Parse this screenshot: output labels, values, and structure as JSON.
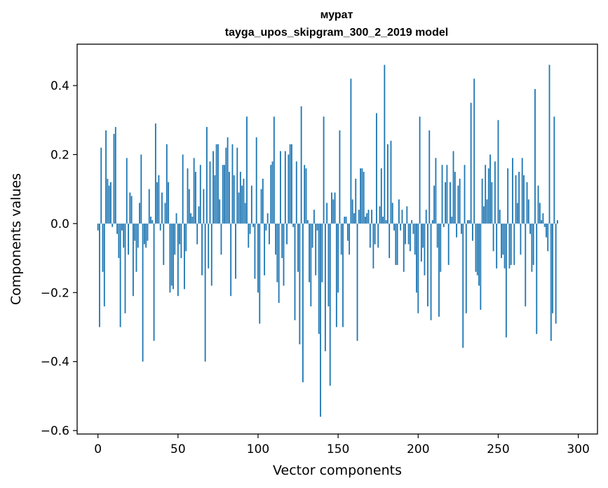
{
  "chart_data": {
    "type": "bar",
    "title": "мурат",
    "subtitle": "tayga_upos_skipgram_300_2_2019 model",
    "xlabel": "Vector components",
    "ylabel": "Components values",
    "xlim": [
      -13,
      312
    ],
    "ylim": [
      -0.61,
      0.52
    ],
    "xticks": [
      0,
      50,
      100,
      150,
      200,
      250,
      300
    ],
    "xtick_labels": [
      "0",
      "50",
      "100",
      "150",
      "200",
      "250",
      "300"
    ],
    "yticks": [
      -0.6,
      -0.4,
      -0.2,
      0.0,
      0.2,
      0.4
    ],
    "ytick_labels": [
      "−0.6",
      "−0.4",
      "−0.2",
      "0.0",
      "0.2",
      "0.4"
    ],
    "bar_color": "#1f77b4",
    "values": [
      -0.02,
      -0.3,
      0.22,
      -0.14,
      -0.24,
      0.27,
      0.13,
      0.11,
      0.12,
      -0.01,
      0.26,
      0.28,
      -0.03,
      -0.1,
      -0.3,
      -0.02,
      -0.07,
      -0.26,
      0.19,
      -0.09,
      0.09,
      0.08,
      -0.21,
      -0.05,
      -0.14,
      -0.07,
      0.06,
      0.2,
      -0.4,
      -0.06,
      -0.07,
      -0.05,
      0.1,
      0.02,
      0.01,
      -0.34,
      0.29,
      0.12,
      0.14,
      -0.02,
      0.09,
      -0.12,
      0.06,
      0.23,
      0.12,
      -0.2,
      -0.18,
      -0.19,
      -0.09,
      0.03,
      -0.21,
      -0.06,
      -0.1,
      0.2,
      -0.19,
      -0.08,
      0.16,
      0.1,
      0.03,
      0.02,
      0.19,
      0.15,
      -0.06,
      0.05,
      0.17,
      -0.15,
      0.1,
      -0.4,
      0.28,
      -0.13,
      0.18,
      -0.18,
      0.21,
      0.14,
      0.23,
      0.23,
      0.07,
      -0.09,
      0.17,
      0.17,
      0.22,
      0.25,
      0.15,
      -0.21,
      0.23,
      0.14,
      -0.16,
      0.22,
      0.09,
      0.15,
      0.11,
      0.13,
      0.06,
      0.31,
      -0.07,
      -0.03,
      0.11,
      -0.01,
      -0.16,
      0.25,
      -0.2,
      -0.29,
      0.1,
      0.13,
      -0.15,
      -0.02,
      0.03,
      -0.06,
      0.17,
      0.18,
      0.31,
      -0.09,
      -0.17,
      -0.23,
      0.21,
      -0.1,
      -0.18,
      0.21,
      -0.06,
      0.2,
      0.23,
      0.23,
      -0.01,
      -0.28,
      0.18,
      -0.14,
      -0.35,
      0.34,
      -0.46,
      0.17,
      0.16,
      0.01,
      -0.17,
      -0.24,
      -0.07,
      0.04,
      -0.15,
      -0.02,
      -0.32,
      -0.56,
      -0.17,
      0.31,
      -0.37,
      0.06,
      -0.24,
      -0.47,
      0.09,
      0.07,
      0.09,
      -0.3,
      -0.2,
      0.27,
      -0.09,
      -0.3,
      0.02,
      0.02,
      -0.05,
      -0.09,
      0.42,
      0.07,
      0.03,
      0.13,
      -0.34,
      0.04,
      0.16,
      0.16,
      0.15,
      0.02,
      0.03,
      0.04,
      -0.07,
      0.04,
      -0.13,
      -0.06,
      0.32,
      -0.07,
      0.05,
      0.16,
      0.02,
      0.46,
      0.01,
      0.23,
      -0.1,
      0.24,
      0.06,
      -0.02,
      -0.12,
      -0.12,
      0.07,
      -0.02,
      0.04,
      -0.14,
      -0.06,
      0.05,
      -0.06,
      -0.08,
      0.01,
      -0.03,
      -0.09,
      -0.2,
      -0.26,
      0.31,
      -0.11,
      -0.07,
      -0.15,
      0.04,
      -0.24,
      0.27,
      -0.28,
      0.01,
      0.11,
      0.19,
      -0.07,
      -0.27,
      -0.14,
      0.17,
      -0.01,
      0.12,
      0.17,
      -0.12,
      0.12,
      0.02,
      0.21,
      0.15,
      -0.04,
      0.11,
      0.13,
      -0.03,
      -0.36,
      0.17,
      -0.26,
      0.01,
      0.01,
      0.35,
      -0.05,
      0.42,
      -0.14,
      -0.15,
      -0.18,
      -0.25,
      0.13,
      0.05,
      0.17,
      0.07,
      0.16,
      0.2,
      0.12,
      -0.08,
      0.18,
      -0.13,
      0.3,
      0.04,
      -0.1,
      -0.09,
      -0.13,
      -0.33,
      0.16,
      -0.13,
      -0.12,
      0.19,
      -0.12,
      0.14,
      0.06,
      0.15,
      -0.09,
      0.19,
      0.14,
      -0.24,
      0.12,
      0.07,
      -0.03,
      -0.14,
      -0.12,
      0.39,
      -0.32,
      0.11,
      0.06,
      0.01,
      0.03,
      -0.01,
      -0.04,
      -0.08,
      0.46,
      -0.34,
      -0.26,
      0.31,
      -0.29,
      0.01
    ]
  }
}
